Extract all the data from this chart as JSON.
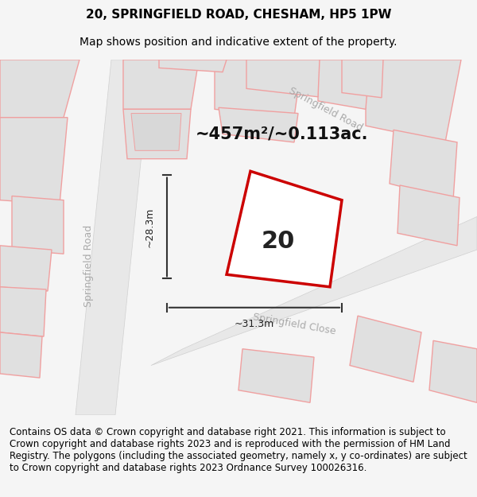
{
  "title": "20, SPRINGFIELD ROAD, CHESHAM, HP5 1PW",
  "subtitle": "Map shows position and indicative extent of the property.",
  "area_text": "~457m²/~0.113ac.",
  "number_label": "20",
  "dim_width": "~31.3m",
  "dim_height": "~28.3m",
  "road_label_1": "Springfield Road",
  "road_label_2": "Springfield Close",
  "road_label_3": "Springfield Road",
  "footer_text": "Contains OS data © Crown copyright and database right 2021. This information is subject to Crown copyright and database rights 2023 and is reproduced with the permission of HM Land Registry. The polygons (including the associated geometry, namely x, y co-ordinates) are subject to Crown copyright and database rights 2023 Ordnance Survey 100026316.",
  "bg_color": "#f0eeee",
  "map_bg": "#f0eeee",
  "road_fill": "#e8e8e8",
  "building_fill": "#d8d8d8",
  "plot_stroke": "#cc0000",
  "plot_fill": "#ffffff",
  "pink_stroke": "#f0a0a0",
  "title_fontsize": 11,
  "subtitle_fontsize": 10,
  "footer_fontsize": 8.5
}
